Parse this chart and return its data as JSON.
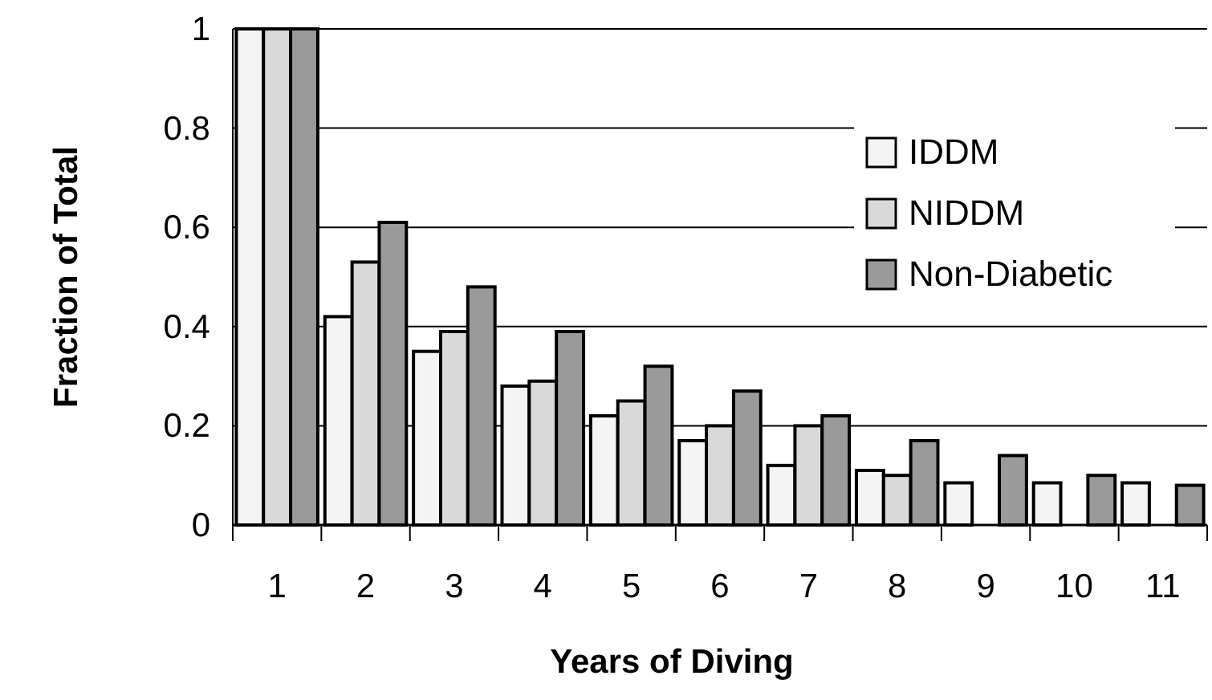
{
  "chart_data": {
    "type": "bar",
    "xlabel": "Years of Diving",
    "ylabel": "Fraction of Total",
    "categories": [
      "1",
      "2",
      "3",
      "4",
      "5",
      "6",
      "7",
      "8",
      "9",
      "10",
      "11"
    ],
    "series": [
      {
        "name": "IDDM",
        "color": "#f4f4f4",
        "values": [
          1,
          0.42,
          0.35,
          0.28,
          0.22,
          0.17,
          0.12,
          0.11,
          0.085,
          0.085,
          0.085
        ]
      },
      {
        "name": "NIDDM",
        "color": "#d9d9d9",
        "values": [
          1,
          0.53,
          0.39,
          0.29,
          0.25,
          0.2,
          0.2,
          0.1,
          null,
          null,
          null
        ]
      },
      {
        "name": "Non-Diabetic",
        "color": "#9a9a9a",
        "values": [
          1,
          0.61,
          0.48,
          0.39,
          0.32,
          0.27,
          0.22,
          0.17,
          0.14,
          0.1,
          0.08
        ]
      }
    ],
    "ylim": [
      0,
      1
    ],
    "yticks": [
      0,
      0.2,
      0.4,
      0.6,
      0.8,
      1
    ],
    "grid": "y",
    "legend": "right"
  }
}
